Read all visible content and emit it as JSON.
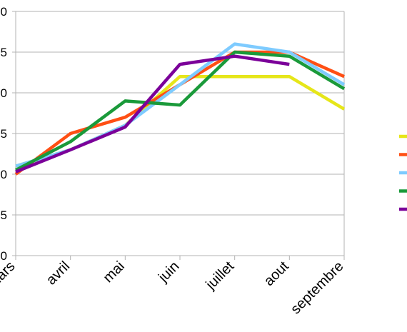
{
  "chart_data": {
    "type": "line",
    "title": "",
    "xlabel": "",
    "ylabel": "",
    "categories": [
      "mars",
      "avril",
      "mai",
      "juin",
      "juillet",
      "aout",
      "septembre"
    ],
    "y_tick_labels": [
      "0",
      "5",
      "0",
      "5",
      "0",
      "5",
      "0"
    ],
    "ylim": [
      0,
      30
    ],
    "grid": true,
    "legend": "right",
    "series": [
      {
        "color": "#e6e619",
        "values": [
          11,
          13,
          16,
          22,
          22,
          22,
          18
        ]
      },
      {
        "color": "#ff4f14",
        "values": [
          10,
          15,
          17,
          21,
          25,
          25,
          22
        ]
      },
      {
        "color": "#7ecbff",
        "values": [
          11,
          13,
          16,
          21,
          26,
          25,
          21
        ]
      },
      {
        "color": "#1a9a3a",
        "values": [
          10.5,
          14,
          19,
          18.5,
          25,
          24.5,
          20.5
        ]
      },
      {
        "color": "#7b0099",
        "values": [
          10.3,
          13,
          15.8,
          23.5,
          24.5,
          23.5,
          null
        ]
      }
    ]
  }
}
